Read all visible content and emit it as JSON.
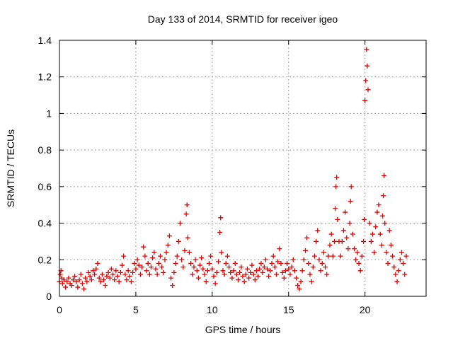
{
  "chart_data": {
    "type": "scatter",
    "title": "Day 133 of 2014, SRMTID for receiver igeo",
    "xlabel": "GPS time / hours",
    "ylabel": "SRMTID / TECUs",
    "xlim": [
      0,
      24
    ],
    "ylim": [
      0,
      1.4
    ],
    "xticks": [
      0,
      5,
      10,
      15,
      20
    ],
    "xtick_labels": [
      "0",
      "5",
      "10",
      "15",
      "20"
    ],
    "yticks": [
      0,
      0.2,
      0.4,
      0.6,
      0.8,
      1.0,
      1.2,
      1.4
    ],
    "ytick_labels": [
      "0",
      "0.2",
      "0.4",
      "0.6",
      "0.8",
      "1",
      "1.2",
      "1.4"
    ],
    "grid": true,
    "marker": "+",
    "series": [
      {
        "name": "SRMTID",
        "color": "#e00000",
        "points": [
          [
            0.0,
            0.08
          ],
          [
            0.05,
            0.12
          ],
          [
            0.1,
            0.14
          ],
          [
            0.15,
            0.1
          ],
          [
            0.2,
            0.07
          ],
          [
            0.3,
            0.09
          ],
          [
            0.4,
            0.05
          ],
          [
            0.5,
            0.08
          ],
          [
            0.6,
            0.1
          ],
          [
            0.7,
            0.07
          ],
          [
            0.8,
            0.06
          ],
          [
            0.9,
            0.09
          ],
          [
            1.0,
            0.11
          ],
          [
            1.1,
            0.08
          ],
          [
            1.2,
            0.05
          ],
          [
            1.3,
            0.09
          ],
          [
            1.4,
            0.12
          ],
          [
            1.5,
            0.07
          ],
          [
            1.6,
            0.04
          ],
          [
            1.7,
            0.1
          ],
          [
            1.8,
            0.08
          ],
          [
            1.9,
            0.13
          ],
          [
            2.0,
            0.11
          ],
          [
            2.1,
            0.09
          ],
          [
            2.2,
            0.14
          ],
          [
            2.3,
            0.12
          ],
          [
            2.4,
            0.15
          ],
          [
            2.5,
            0.18
          ],
          [
            2.6,
            0.1
          ],
          [
            2.7,
            0.08
          ],
          [
            2.8,
            0.12
          ],
          [
            2.9,
            0.09
          ],
          [
            3.0,
            0.06
          ],
          [
            3.1,
            0.11
          ],
          [
            3.2,
            0.13
          ],
          [
            3.3,
            0.1
          ],
          [
            3.4,
            0.15
          ],
          [
            3.5,
            0.12
          ],
          [
            3.6,
            0.09
          ],
          [
            3.7,
            0.14
          ],
          [
            3.8,
            0.11
          ],
          [
            3.9,
            0.08
          ],
          [
            4.0,
            0.13
          ],
          [
            4.1,
            0.17
          ],
          [
            4.2,
            0.22
          ],
          [
            4.3,
            0.12
          ],
          [
            4.4,
            0.09
          ],
          [
            4.5,
            0.14
          ],
          [
            4.6,
            0.11
          ],
          [
            4.7,
            0.08
          ],
          [
            4.8,
            0.13
          ],
          [
            4.9,
            0.18
          ],
          [
            5.0,
            0.15
          ],
          [
            5.1,
            0.2
          ],
          [
            5.2,
            0.17
          ],
          [
            5.3,
            0.12
          ],
          [
            5.4,
            0.16
          ],
          [
            5.5,
            0.27
          ],
          [
            5.6,
            0.22
          ],
          [
            5.7,
            0.14
          ],
          [
            5.8,
            0.18
          ],
          [
            5.9,
            0.12
          ],
          [
            6.0,
            0.16
          ],
          [
            6.1,
            0.21
          ],
          [
            6.2,
            0.24
          ],
          [
            6.3,
            0.15
          ],
          [
            6.4,
            0.12
          ],
          [
            6.5,
            0.18
          ],
          [
            6.6,
            0.22
          ],
          [
            6.7,
            0.16
          ],
          [
            6.8,
            0.13
          ],
          [
            6.9,
            0.2
          ],
          [
            7.0,
            0.24
          ],
          [
            7.1,
            0.28
          ],
          [
            7.2,
            0.33
          ],
          [
            7.3,
            0.1
          ],
          [
            7.4,
            0.06
          ],
          [
            7.5,
            0.13
          ],
          [
            7.6,
            0.18
          ],
          [
            7.7,
            0.22
          ],
          [
            7.8,
            0.3
          ],
          [
            7.9,
            0.4
          ],
          [
            8.0,
            0.2
          ],
          [
            8.1,
            0.16
          ],
          [
            8.2,
            0.25
          ],
          [
            8.3,
            0.45
          ],
          [
            8.35,
            0.5
          ],
          [
            8.4,
            0.32
          ],
          [
            8.5,
            0.24
          ],
          [
            8.6,
            0.18
          ],
          [
            8.7,
            0.12
          ],
          [
            8.8,
            0.16
          ],
          [
            8.9,
            0.2
          ],
          [
            9.0,
            0.14
          ],
          [
            9.1,
            0.1
          ],
          [
            9.2,
            0.17
          ],
          [
            9.3,
            0.21
          ],
          [
            9.4,
            0.15
          ],
          [
            9.5,
            0.12
          ],
          [
            9.6,
            0.08
          ],
          [
            9.7,
            0.14
          ],
          [
            9.8,
            0.18
          ],
          [
            9.9,
            0.22
          ],
          [
            10.0,
            0.15
          ],
          [
            10.1,
            0.11
          ],
          [
            10.2,
            0.07
          ],
          [
            10.3,
            0.13
          ],
          [
            10.4,
            0.19
          ],
          [
            10.5,
            0.35
          ],
          [
            10.55,
            0.43
          ],
          [
            10.6,
            0.24
          ],
          [
            10.7,
            0.14
          ],
          [
            10.8,
            0.12
          ],
          [
            10.9,
            0.18
          ],
          [
            11.0,
            0.22
          ],
          [
            11.1,
            0.16
          ],
          [
            11.2,
            0.13
          ],
          [
            11.3,
            0.1
          ],
          [
            11.4,
            0.14
          ],
          [
            11.5,
            0.18
          ],
          [
            11.6,
            0.12
          ],
          [
            11.7,
            0.09
          ],
          [
            11.8,
            0.13
          ],
          [
            11.9,
            0.16
          ],
          [
            12.0,
            0.11
          ],
          [
            12.1,
            0.08
          ],
          [
            12.2,
            0.12
          ],
          [
            12.3,
            0.15
          ],
          [
            12.4,
            0.1
          ],
          [
            12.5,
            0.13
          ],
          [
            12.6,
            0.17
          ],
          [
            12.7,
            0.12
          ],
          [
            12.8,
            0.09
          ],
          [
            12.9,
            0.14
          ],
          [
            13.0,
            0.11
          ],
          [
            13.1,
            0.15
          ],
          [
            13.2,
            0.18
          ],
          [
            13.3,
            0.13
          ],
          [
            13.4,
            0.16
          ],
          [
            13.5,
            0.2
          ],
          [
            13.6,
            0.15
          ],
          [
            13.7,
            0.11
          ],
          [
            13.8,
            0.14
          ],
          [
            13.9,
            0.18
          ],
          [
            14.0,
            0.22
          ],
          [
            14.1,
            0.16
          ],
          [
            14.2,
            0.12
          ],
          [
            14.3,
            0.19
          ],
          [
            14.4,
            0.26
          ],
          [
            14.5,
            0.18
          ],
          [
            14.6,
            0.13
          ],
          [
            14.7,
            0.1
          ],
          [
            14.8,
            0.14
          ],
          [
            14.9,
            0.18
          ],
          [
            15.0,
            0.15
          ],
          [
            15.1,
            0.12
          ],
          [
            15.2,
            0.16
          ],
          [
            15.3,
            0.2
          ],
          [
            15.4,
            0.14
          ],
          [
            15.5,
            0.1
          ],
          [
            15.6,
            0.06
          ],
          [
            15.7,
            0.04
          ],
          [
            15.8,
            0.08
          ],
          [
            15.9,
            0.14
          ],
          [
            16.0,
            0.2
          ],
          [
            16.1,
            0.25
          ],
          [
            16.2,
            0.32
          ],
          [
            16.3,
            0.18
          ],
          [
            16.4,
            0.12
          ],
          [
            16.5,
            0.08
          ],
          [
            16.6,
            0.16
          ],
          [
            16.7,
            0.22
          ],
          [
            16.8,
            0.3
          ],
          [
            16.9,
            0.36
          ],
          [
            17.0,
            0.2
          ],
          [
            17.1,
            0.14
          ],
          [
            17.2,
            0.18
          ],
          [
            17.3,
            0.24
          ],
          [
            17.4,
            0.16
          ],
          [
            17.5,
            0.12
          ],
          [
            17.6,
            0.22
          ],
          [
            17.7,
            0.28
          ],
          [
            17.8,
            0.34
          ],
          [
            17.9,
            0.22
          ],
          [
            18.0,
            0.3
          ],
          [
            18.05,
            0.48
          ],
          [
            18.1,
            0.6
          ],
          [
            18.15,
            0.65
          ],
          [
            18.2,
            0.42
          ],
          [
            18.3,
            0.3
          ],
          [
            18.4,
            0.22
          ],
          [
            18.5,
            0.3
          ],
          [
            18.6,
            0.36
          ],
          [
            18.7,
            0.46
          ],
          [
            18.8,
            0.32
          ],
          [
            18.9,
            0.26
          ],
          [
            19.0,
            0.4
          ],
          [
            19.05,
            0.52
          ],
          [
            19.1,
            0.6
          ],
          [
            19.2,
            0.34
          ],
          [
            19.3,
            0.26
          ],
          [
            19.4,
            0.2
          ],
          [
            19.5,
            0.24
          ],
          [
            19.6,
            0.18
          ],
          [
            19.7,
            0.14
          ],
          [
            19.8,
            0.22
          ],
          [
            19.9,
            0.3
          ],
          [
            19.95,
            0.42
          ],
          [
            20.0,
            1.07
          ],
          [
            20.05,
            1.18
          ],
          [
            20.1,
            1.35
          ],
          [
            20.15,
            1.26
          ],
          [
            20.2,
            1.13
          ],
          [
            20.3,
            0.4
          ],
          [
            20.4,
            0.3
          ],
          [
            20.5,
            0.34
          ],
          [
            20.6,
            0.24
          ],
          [
            20.7,
            0.38
          ],
          [
            20.8,
            0.46
          ],
          [
            20.9,
            0.5
          ],
          [
            21.0,
            0.34
          ],
          [
            21.1,
            0.28
          ],
          [
            21.15,
            0.44
          ],
          [
            21.2,
            0.55
          ],
          [
            21.25,
            0.66
          ],
          [
            21.3,
            0.4
          ],
          [
            21.4,
            0.24
          ],
          [
            21.5,
            0.18
          ],
          [
            21.6,
            0.36
          ],
          [
            21.7,
            0.28
          ],
          [
            21.8,
            0.22
          ],
          [
            21.9,
            0.16
          ],
          [
            22.0,
            0.12
          ],
          [
            22.1,
            0.08
          ],
          [
            22.2,
            0.14
          ],
          [
            22.3,
            0.2
          ],
          [
            22.4,
            0.24
          ],
          [
            22.5,
            0.18
          ],
          [
            22.6,
            0.12
          ],
          [
            22.7,
            0.22
          ]
        ]
      }
    ]
  }
}
